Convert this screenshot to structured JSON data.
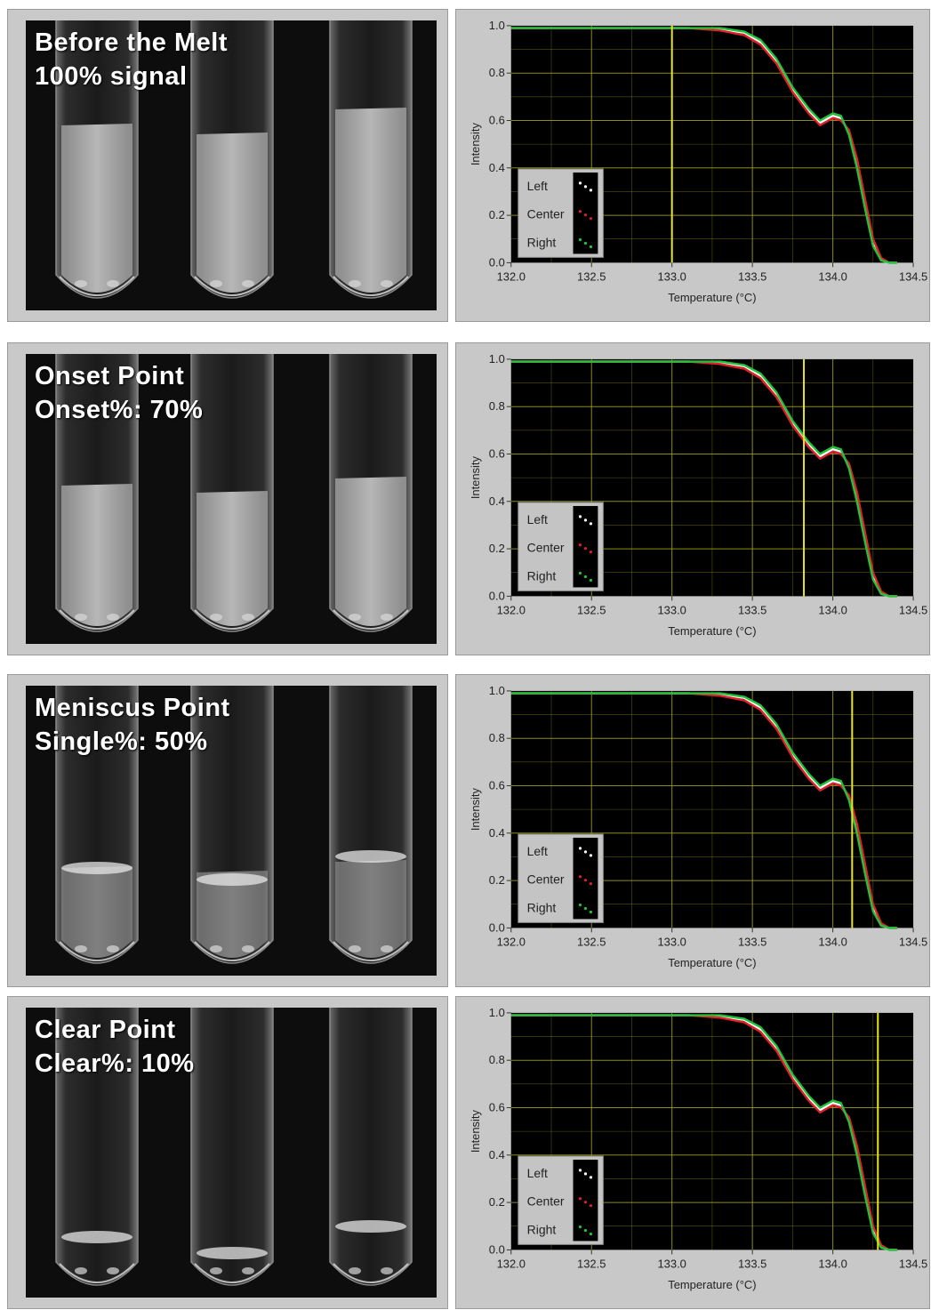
{
  "panels": [
    {
      "caption_line1": "Before the Melt",
      "caption_line2": "100% signal",
      "chart_data": {
        "type": "line",
        "xlabel": "Temperature (°C)",
        "ylabel": "Intensity",
        "xlim": [
          132.0,
          134.5
        ],
        "ylim": [
          0.0,
          1.0
        ],
        "xticks": [
          "132.0",
          "132.5",
          "133.0",
          "133.5",
          "134.0",
          "134.5"
        ],
        "yticks": [
          "0.0",
          "0.2",
          "0.4",
          "0.6",
          "0.8",
          "1.0"
        ],
        "grid": true,
        "legend": [
          "Left",
          "Center",
          "Right"
        ],
        "legend_position": "bottom-left",
        "cursor_x": 133.0,
        "series": [
          {
            "name": "Left",
            "color": "#ffffff",
            "x": [
              132.0,
              132.4,
              132.8,
              133.1,
              133.3,
              133.45,
              133.55,
              133.65,
              133.75,
              133.85,
              133.92,
              134.0,
              134.05,
              134.1,
              134.15,
              134.2,
              134.25,
              134.3,
              134.35,
              134.4
            ],
            "y": [
              0.99,
              0.99,
              0.99,
              0.99,
              0.985,
              0.97,
              0.93,
              0.85,
              0.73,
              0.64,
              0.59,
              0.62,
              0.61,
              0.55,
              0.42,
              0.25,
              0.08,
              0.01,
              0.0,
              0.0
            ]
          },
          {
            "name": "Center",
            "color": "#e0202a",
            "x": [
              132.0,
              132.4,
              132.8,
              133.1,
              133.3,
              133.45,
              133.55,
              133.65,
              133.75,
              133.85,
              133.92,
              134.0,
              134.05,
              134.1,
              134.15,
              134.2,
              134.25,
              134.3,
              134.35,
              134.4
            ],
            "y": [
              0.99,
              0.99,
              0.99,
              0.99,
              0.98,
              0.96,
              0.92,
              0.84,
              0.72,
              0.63,
              0.58,
              0.61,
              0.6,
              0.56,
              0.44,
              0.27,
              0.1,
              0.02,
              0.0,
              0.0
            ]
          },
          {
            "name": "Right",
            "color": "#1fc43a",
            "x": [
              132.0,
              132.4,
              132.8,
              133.1,
              133.3,
              133.45,
              133.55,
              133.65,
              133.75,
              133.85,
              133.92,
              134.0,
              134.05,
              134.1,
              134.15,
              134.2,
              134.25,
              134.3,
              134.35,
              134.4
            ],
            "y": [
              0.99,
              0.99,
              0.99,
              0.99,
              0.99,
              0.975,
              0.94,
              0.86,
              0.74,
              0.65,
              0.6,
              0.63,
              0.62,
              0.54,
              0.4,
              0.23,
              0.07,
              0.01,
              0.0,
              0.0
            ]
          }
        ]
      }
    },
    {
      "caption_line1": "Onset Point",
      "caption_line2": "Onset%: 70%",
      "chart_data": {
        "type": "line",
        "xlabel": "Temperature (°C)",
        "ylabel": "Intensity",
        "xlim": [
          132.0,
          134.5
        ],
        "ylim": [
          0.0,
          1.0
        ],
        "xticks": [
          "132.0",
          "132.5",
          "133.0",
          "133.5",
          "134.0",
          "134.5"
        ],
        "yticks": [
          "0.0",
          "0.2",
          "0.4",
          "0.6",
          "0.8",
          "1.0"
        ],
        "grid": true,
        "legend": [
          "Left",
          "Center",
          "Right"
        ],
        "legend_position": "bottom-left",
        "cursor_x": 133.82,
        "series": [
          {
            "name": "Left",
            "color": "#ffffff",
            "x": [
              132.0,
              132.4,
              132.8,
              133.1,
              133.3,
              133.45,
              133.55,
              133.65,
              133.75,
              133.85,
              133.92,
              134.0,
              134.05,
              134.1,
              134.15,
              134.2,
              134.25,
              134.3,
              134.35,
              134.4
            ],
            "y": [
              0.99,
              0.99,
              0.99,
              0.99,
              0.985,
              0.97,
              0.93,
              0.85,
              0.73,
              0.64,
              0.59,
              0.62,
              0.61,
              0.55,
              0.42,
              0.25,
              0.08,
              0.01,
              0.0,
              0.0
            ]
          },
          {
            "name": "Center",
            "color": "#e0202a",
            "x": [
              132.0,
              132.4,
              132.8,
              133.1,
              133.3,
              133.45,
              133.55,
              133.65,
              133.75,
              133.85,
              133.92,
              134.0,
              134.05,
              134.1,
              134.15,
              134.2,
              134.25,
              134.3,
              134.35,
              134.4
            ],
            "y": [
              0.99,
              0.99,
              0.99,
              0.99,
              0.98,
              0.96,
              0.92,
              0.84,
              0.72,
              0.63,
              0.58,
              0.61,
              0.6,
              0.56,
              0.44,
              0.27,
              0.1,
              0.02,
              0.0,
              0.0
            ]
          },
          {
            "name": "Right",
            "color": "#1fc43a",
            "x": [
              132.0,
              132.4,
              132.8,
              133.1,
              133.3,
              133.45,
              133.55,
              133.65,
              133.75,
              133.85,
              133.92,
              134.0,
              134.05,
              134.1,
              134.15,
              134.2,
              134.25,
              134.3,
              134.35,
              134.4
            ],
            "y": [
              0.99,
              0.99,
              0.99,
              0.99,
              0.99,
              0.975,
              0.94,
              0.86,
              0.74,
              0.65,
              0.6,
              0.63,
              0.62,
              0.54,
              0.4,
              0.23,
              0.07,
              0.01,
              0.0,
              0.0
            ]
          }
        ]
      }
    },
    {
      "caption_line1": "Meniscus Point",
      "caption_line2": "Single%: 50%",
      "chart_data": {
        "type": "line",
        "xlabel": "Temperature (°C)",
        "ylabel": "Intensity",
        "xlim": [
          132.0,
          134.5
        ],
        "ylim": [
          0.0,
          1.0
        ],
        "xticks": [
          "132.0",
          "132.5",
          "133.0",
          "133.5",
          "134.0",
          "134.5"
        ],
        "yticks": [
          "0.0",
          "0.2",
          "0.4",
          "0.6",
          "0.8",
          "1.0"
        ],
        "grid": true,
        "legend": [
          "Left",
          "Center",
          "Right"
        ],
        "legend_position": "bottom-left",
        "cursor_x": 134.12,
        "series": [
          {
            "name": "Left",
            "color": "#ffffff",
            "x": [
              132.0,
              132.4,
              132.8,
              133.1,
              133.3,
              133.45,
              133.55,
              133.65,
              133.75,
              133.85,
              133.92,
              134.0,
              134.05,
              134.1,
              134.15,
              134.2,
              134.25,
              134.3,
              134.35,
              134.4
            ],
            "y": [
              0.99,
              0.99,
              0.99,
              0.99,
              0.985,
              0.97,
              0.93,
              0.85,
              0.73,
              0.64,
              0.59,
              0.62,
              0.61,
              0.55,
              0.42,
              0.25,
              0.08,
              0.01,
              0.0,
              0.0
            ]
          },
          {
            "name": "Center",
            "color": "#e0202a",
            "x": [
              132.0,
              132.4,
              132.8,
              133.1,
              133.3,
              133.45,
              133.55,
              133.65,
              133.75,
              133.85,
              133.92,
              134.0,
              134.05,
              134.1,
              134.15,
              134.2,
              134.25,
              134.3,
              134.35,
              134.4
            ],
            "y": [
              0.99,
              0.99,
              0.99,
              0.99,
              0.98,
              0.96,
              0.92,
              0.84,
              0.72,
              0.63,
              0.58,
              0.61,
              0.6,
              0.56,
              0.44,
              0.27,
              0.1,
              0.02,
              0.0,
              0.0
            ]
          },
          {
            "name": "Right",
            "color": "#1fc43a",
            "x": [
              132.0,
              132.4,
              132.8,
              133.1,
              133.3,
              133.45,
              133.55,
              133.65,
              133.75,
              133.85,
              133.92,
              134.0,
              134.05,
              134.1,
              134.15,
              134.2,
              134.25,
              134.3,
              134.35,
              134.4
            ],
            "y": [
              0.99,
              0.99,
              0.99,
              0.99,
              0.99,
              0.975,
              0.94,
              0.86,
              0.74,
              0.65,
              0.6,
              0.63,
              0.62,
              0.54,
              0.4,
              0.23,
              0.07,
              0.01,
              0.0,
              0.0
            ]
          }
        ]
      }
    },
    {
      "caption_line1": "Clear Point",
      "caption_line2": "Clear%: 10%",
      "chart_data": {
        "type": "line",
        "xlabel": "Temperature (°C)",
        "ylabel": "Intensity",
        "xlim": [
          132.0,
          134.5
        ],
        "ylim": [
          0.0,
          1.0
        ],
        "xticks": [
          "132.0",
          "132.5",
          "133.0",
          "133.5",
          "134.0",
          "134.5"
        ],
        "yticks": [
          "0.0",
          "0.2",
          "0.4",
          "0.6",
          "0.8",
          "1.0"
        ],
        "grid": true,
        "legend": [
          "Left",
          "Center",
          "Right"
        ],
        "legend_position": "bottom-left",
        "cursor_x": 134.28,
        "series": [
          {
            "name": "Left",
            "color": "#ffffff",
            "x": [
              132.0,
              132.4,
              132.8,
              133.1,
              133.3,
              133.45,
              133.55,
              133.65,
              133.75,
              133.85,
              133.92,
              134.0,
              134.05,
              134.1,
              134.15,
              134.2,
              134.25,
              134.3,
              134.35,
              134.4
            ],
            "y": [
              0.99,
              0.99,
              0.99,
              0.99,
              0.985,
              0.97,
              0.93,
              0.85,
              0.73,
              0.64,
              0.59,
              0.62,
              0.61,
              0.55,
              0.42,
              0.25,
              0.08,
              0.01,
              0.0,
              0.0
            ]
          },
          {
            "name": "Center",
            "color": "#e0202a",
            "x": [
              132.0,
              132.4,
              132.8,
              133.1,
              133.3,
              133.45,
              133.55,
              133.65,
              133.75,
              133.85,
              133.92,
              134.0,
              134.05,
              134.1,
              134.15,
              134.2,
              134.25,
              134.3,
              134.35,
              134.4
            ],
            "y": [
              0.99,
              0.99,
              0.99,
              0.99,
              0.98,
              0.96,
              0.92,
              0.84,
              0.72,
              0.63,
              0.58,
              0.61,
              0.6,
              0.56,
              0.44,
              0.27,
              0.1,
              0.02,
              0.0,
              0.0
            ]
          },
          {
            "name": "Right",
            "color": "#1fc43a",
            "x": [
              132.0,
              132.4,
              132.8,
              133.1,
              133.3,
              133.45,
              133.55,
              133.65,
              133.75,
              133.85,
              133.92,
              134.0,
              134.05,
              134.1,
              134.15,
              134.2,
              134.25,
              134.3,
              134.35,
              134.4
            ],
            "y": [
              0.99,
              0.99,
              0.99,
              0.99,
              0.99,
              0.975,
              0.94,
              0.86,
              0.74,
              0.65,
              0.6,
              0.63,
              0.62,
              0.54,
              0.4,
              0.23,
              0.07,
              0.01,
              0.0,
              0.0
            ]
          }
        ]
      }
    }
  ],
  "colors": {
    "plot_bg": "#000000",
    "grid": "#9c9c1c",
    "cursor": "#e8e61a",
    "frame": "#c8c8c8"
  }
}
